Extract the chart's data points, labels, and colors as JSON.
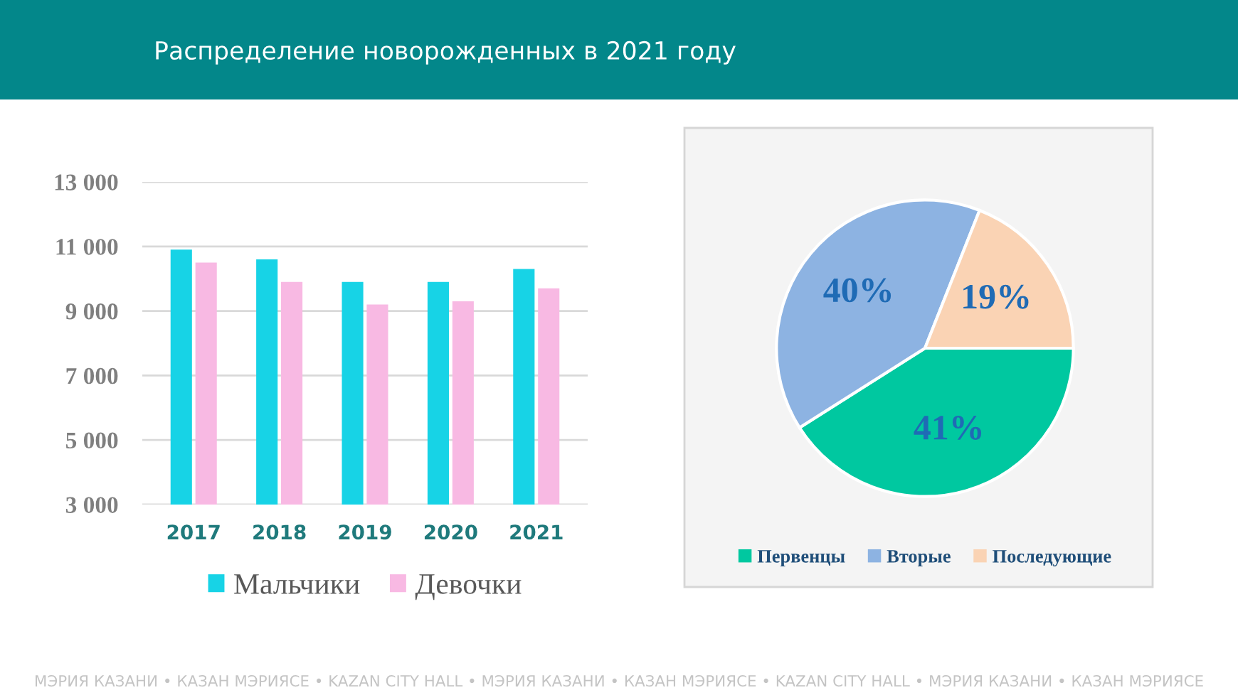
{
  "chart_data": [
    {
      "type": "bar",
      "title": "Распределение новорожденных в 2021 году",
      "categories": [
        "2017",
        "2018",
        "2019",
        "2020",
        "2021"
      ],
      "series": [
        {
          "name": "Мальчики",
          "color": "#17d3e6",
          "values": [
            10900,
            10600,
            9900,
            9900,
            10300
          ]
        },
        {
          "name": "Девочки",
          "color": "#f8b9e3",
          "values": [
            10500,
            9900,
            9200,
            9300,
            9700
          ]
        }
      ],
      "ylim": [
        3000,
        13000
      ],
      "yticks": [
        {
          "value": 3000,
          "label": "3 000"
        },
        {
          "value": 5000,
          "label": "5 000"
        },
        {
          "value": 7000,
          "label": "7 000"
        },
        {
          "value": 9000,
          "label": "9 000"
        },
        {
          "value": 11000,
          "label": "11 000"
        },
        {
          "value": 13000,
          "label": "13 000"
        }
      ],
      "grid": "y",
      "legend": "bottom",
      "annotations": [
        "МЭРИЯ КАЗАНИ • КАЗАН МЭРИЯСЕ • KAZAN CITY HALL • МЭРИЯ КАЗАНИ • КАЗАН МЭРИЯСЕ • KAZAN CITY HALL • МЭРИЯ КАЗАНИ • КАЗАН МЭРИЯСЕ"
      ]
    },
    {
      "type": "pie",
      "categories": [
        "Первенцы",
        "Вторые",
        "Последующие"
      ],
      "values": [
        41,
        40,
        19
      ],
      "colors": [
        "#00c8a0",
        "#8db3e2",
        "#fad3b4"
      ],
      "value_labels": [
        "41%",
        "40%",
        "19%"
      ],
      "legend": "bottom"
    }
  ]
}
